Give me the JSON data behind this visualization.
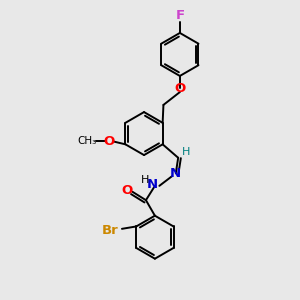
{
  "bg_color": "#e8e8e8",
  "bond_color": "#000000",
  "atoms": {
    "F": {
      "color": "#cc44cc"
    },
    "O": {
      "color": "#ff0000"
    },
    "N": {
      "color": "#0000cd"
    },
    "Br": {
      "color": "#cc8800"
    },
    "H_imine": {
      "color": "#008080"
    }
  },
  "figsize": [
    3.0,
    3.0
  ],
  "dpi": 100,
  "xlim": [
    0,
    10
  ],
  "ylim": [
    0,
    10
  ],
  "lw": 1.4,
  "ring_r": 0.72
}
